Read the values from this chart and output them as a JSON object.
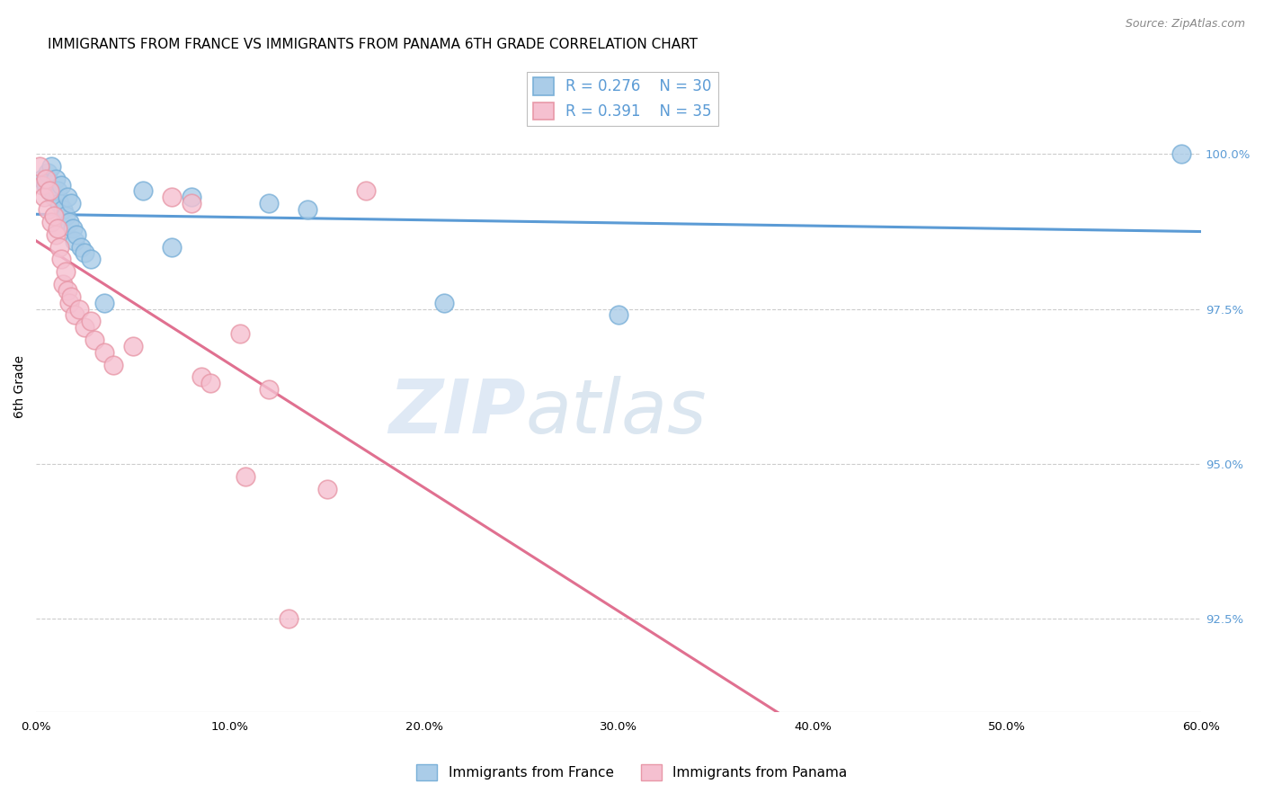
{
  "title": "IMMIGRANTS FROM FRANCE VS IMMIGRANTS FROM PANAMA 6TH GRADE CORRELATION CHART",
  "source": "Source: ZipAtlas.com",
  "ylabel": "6th Grade",
  "legend_labels": [
    "Immigrants from France",
    "Immigrants from Panama"
  ],
  "R_france": 0.276,
  "N_france": 30,
  "R_panama": 0.391,
  "N_panama": 35,
  "xlim": [
    0.0,
    60.0
  ],
  "ylim": [
    91.0,
    101.5
  ],
  "xtick_labels": [
    "0.0%",
    "10.0%",
    "20.0%",
    "30.0%",
    "40.0%",
    "50.0%",
    "60.0%"
  ],
  "xtick_vals": [
    0.0,
    10.0,
    20.0,
    30.0,
    40.0,
    50.0,
    60.0
  ],
  "ytick_labels": [
    "92.5%",
    "95.0%",
    "97.5%",
    "100.0%"
  ],
  "ytick_vals": [
    92.5,
    95.0,
    97.5,
    100.0
  ],
  "france_x": [
    0.3,
    0.5,
    0.6,
    0.7,
    0.8,
    0.9,
    1.0,
    1.1,
    1.2,
    1.3,
    1.4,
    1.5,
    1.6,
    1.7,
    1.8,
    1.9,
    2.0,
    2.1,
    2.3,
    2.5,
    2.8,
    3.5,
    5.5,
    7.0,
    8.0,
    12.0,
    14.0,
    21.0,
    30.0,
    59.0
  ],
  "france_y": [
    99.6,
    99.5,
    99.7,
    99.4,
    99.8,
    99.3,
    99.6,
    99.4,
    99.2,
    99.5,
    99.1,
    99.0,
    99.3,
    98.9,
    99.2,
    98.8,
    98.6,
    98.7,
    98.5,
    98.4,
    98.3,
    97.6,
    99.4,
    98.5,
    99.3,
    99.2,
    99.1,
    97.6,
    97.4,
    100.0
  ],
  "panama_x": [
    0.2,
    0.3,
    0.4,
    0.5,
    0.6,
    0.7,
    0.8,
    0.9,
    1.0,
    1.1,
    1.2,
    1.3,
    1.4,
    1.5,
    1.6,
    1.7,
    1.8,
    2.0,
    2.2,
    2.5,
    2.8,
    3.0,
    3.5,
    4.0,
    5.0,
    7.0,
    8.0,
    8.5,
    9.0,
    10.5,
    10.8,
    12.0,
    13.0,
    15.0,
    17.0
  ],
  "panama_y": [
    99.8,
    99.5,
    99.3,
    99.6,
    99.1,
    99.4,
    98.9,
    99.0,
    98.7,
    98.8,
    98.5,
    98.3,
    97.9,
    98.1,
    97.8,
    97.6,
    97.7,
    97.4,
    97.5,
    97.2,
    97.3,
    97.0,
    96.8,
    96.6,
    96.9,
    99.3,
    99.2,
    96.4,
    96.3,
    97.1,
    94.8,
    96.2,
    92.5,
    94.6,
    99.4
  ],
  "watermark_zip": "ZIP",
  "watermark_atlas": "atlas",
  "france_line_color": "#5b9bd5",
  "panama_line_color": "#e07090",
  "france_marker_color": "#aacce8",
  "panama_marker_color": "#f5c0d0",
  "france_edge_color": "#7ab0d8",
  "panama_edge_color": "#e898a8",
  "grid_color": "#cccccc",
  "title_fontsize": 11,
  "axis_label_fontsize": 10,
  "tick_fontsize": 9.5,
  "legend_fontsize": 12,
  "source_fontsize": 9
}
